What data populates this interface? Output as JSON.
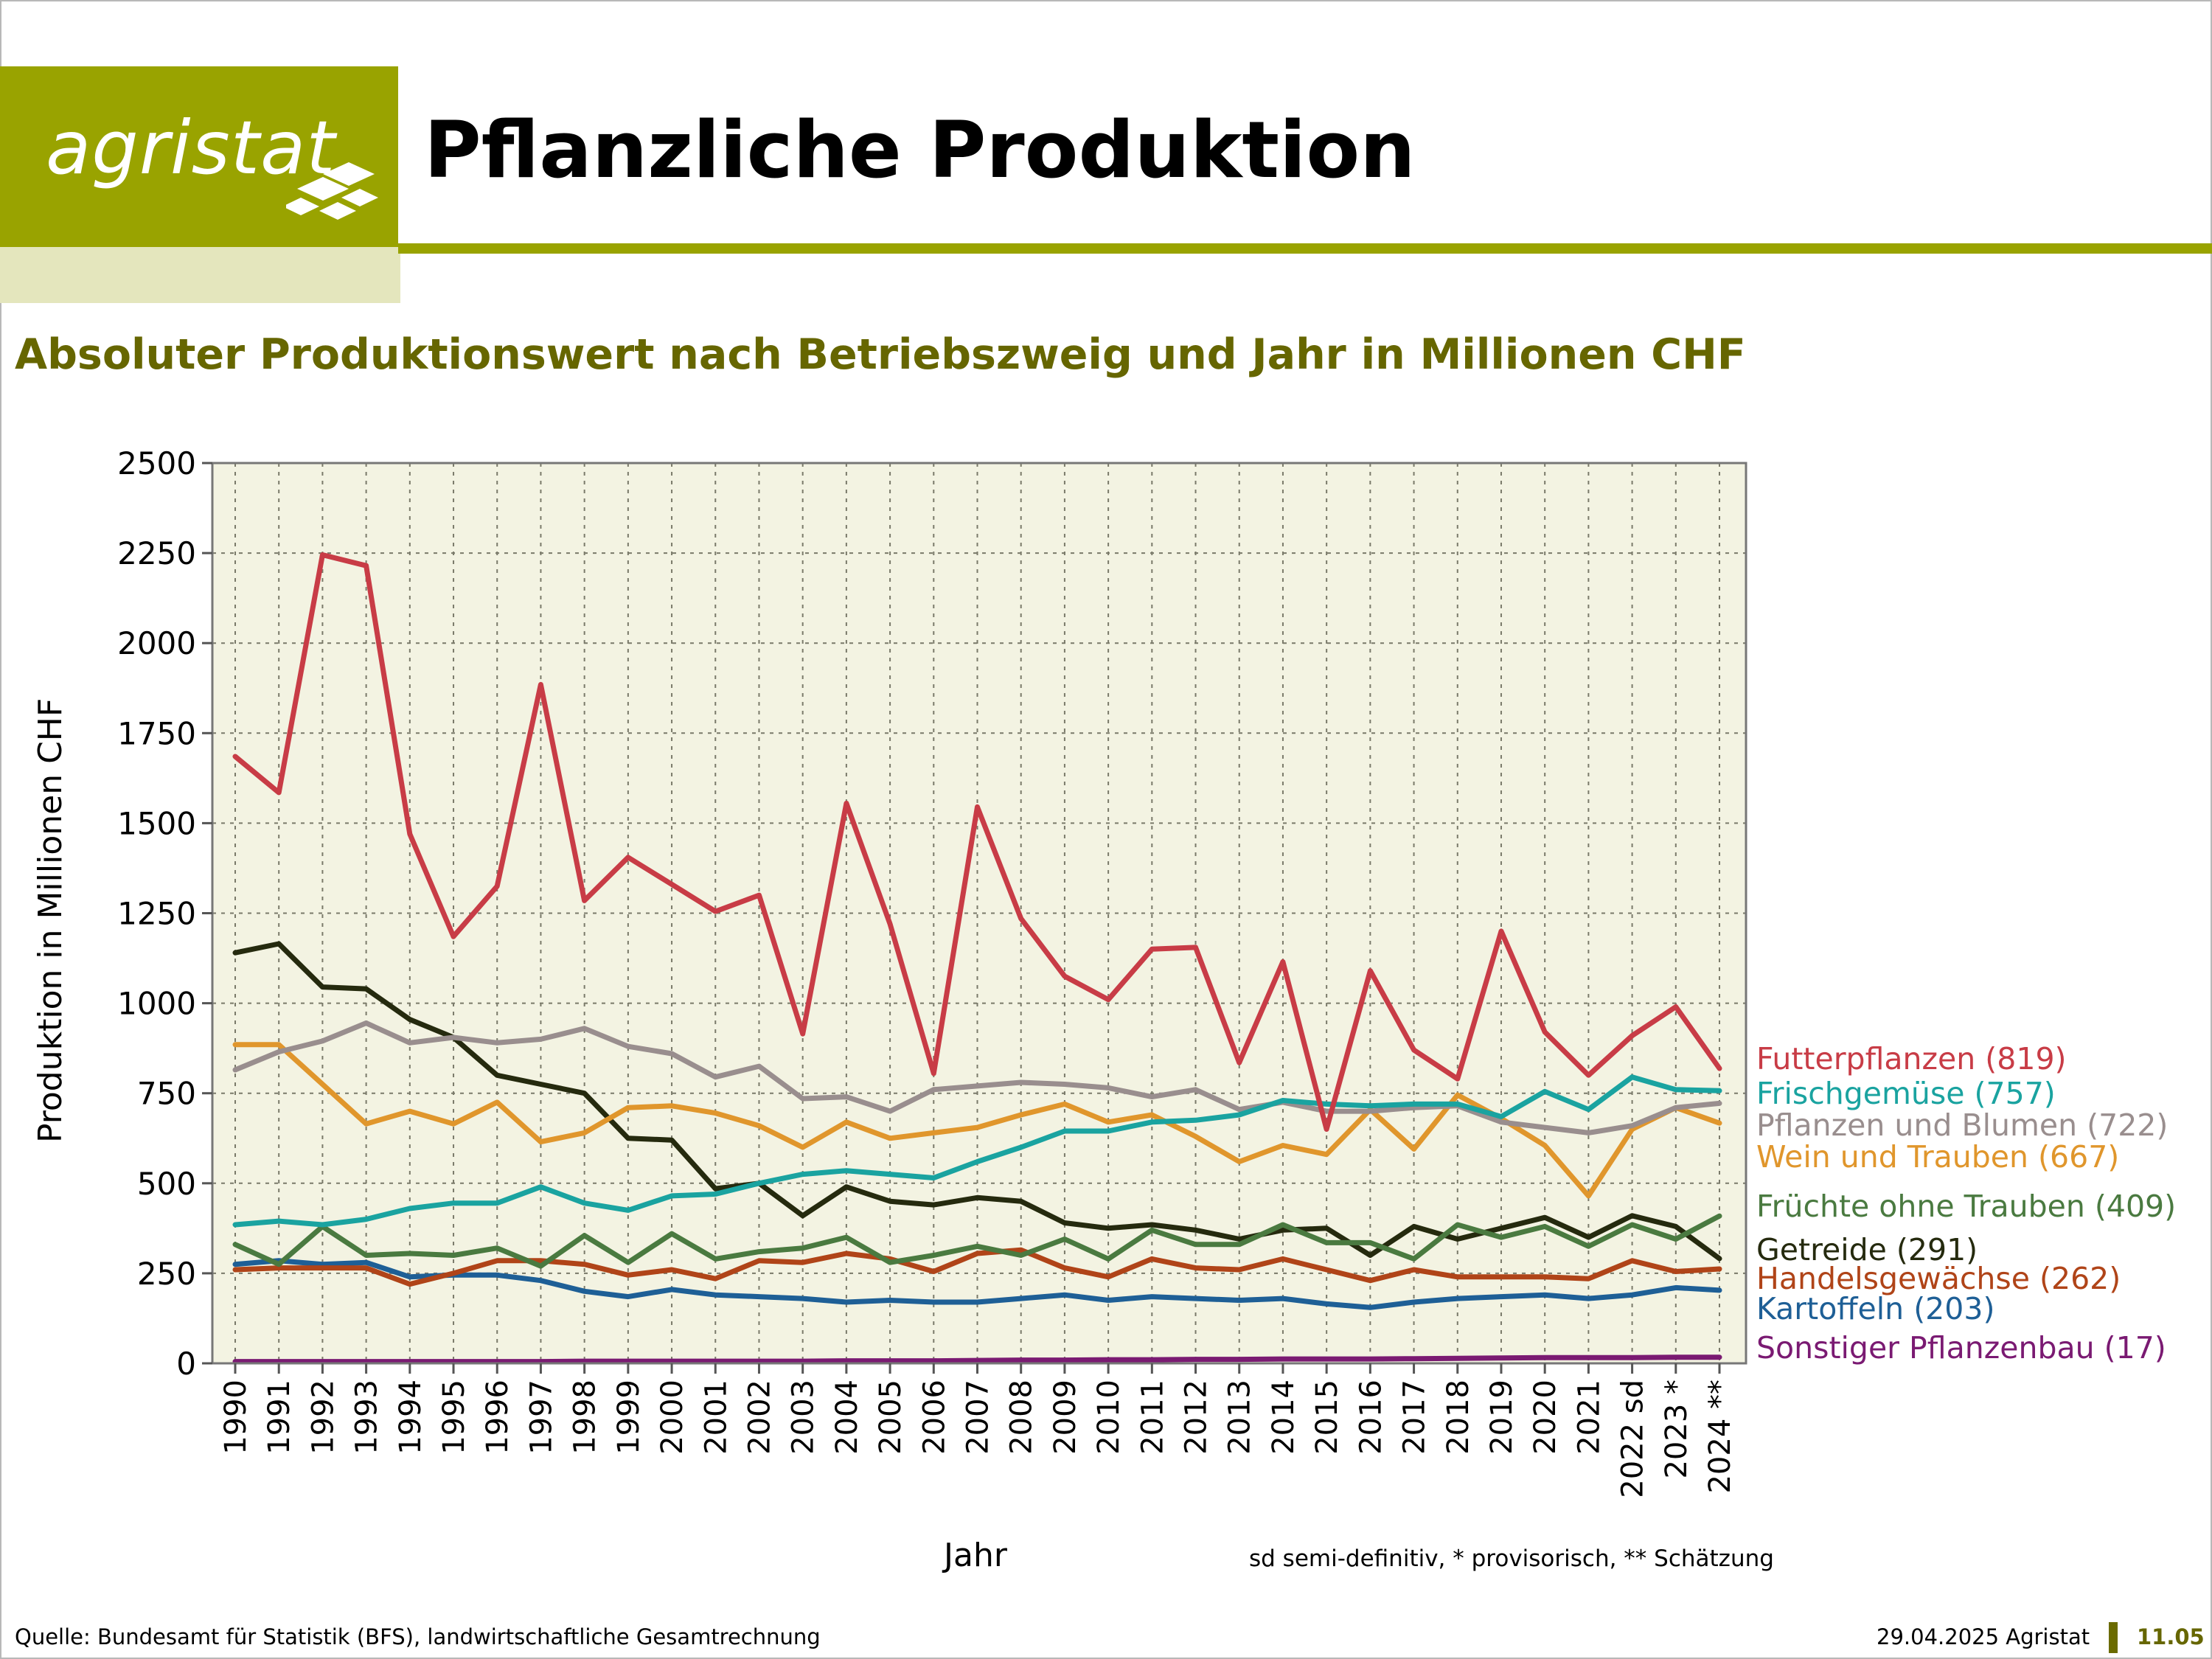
{
  "header": {
    "logo_text": "agristat",
    "title": "Pflanzliche Produktion",
    "subtitle": "Absoluter Produktionswert nach Betriebszweig und Jahr in Millionen CHF"
  },
  "footer": {
    "source": "Quelle: Bundesamt für Statistik (BFS), landwirtschaftliche Gesamtrechnung",
    "date": "29.04.2025 Agristat",
    "page": "11.05"
  },
  "colors": {
    "brand": "#99a300",
    "brand_light": "#e4e6bd",
    "subtitle": "#666600",
    "plot_bg": "#f3f3e2"
  },
  "chart_data": {
    "type": "line",
    "title": "Absoluter Produktionswert nach Betriebszweig und Jahr in Millionen CHF",
    "xlabel": "Jahr",
    "ylabel": "Produktion in Millionen CHF",
    "footnote": "sd semi-definitiv, * provisorisch, ** Schätzung",
    "ylim": [
      0,
      2500
    ],
    "yticks": [
      0,
      250,
      500,
      750,
      1000,
      1250,
      1500,
      1750,
      2000,
      2250,
      2500
    ],
    "grid": true,
    "legend": "right, labels at line ends",
    "categories": [
      "1990",
      "1991",
      "1992",
      "1993",
      "1994",
      "1995",
      "1996",
      "1997",
      "1998",
      "1999",
      "2000",
      "2001",
      "2002",
      "2003",
      "2004",
      "2005",
      "2006",
      "2007",
      "2008",
      "2009",
      "2010",
      "2011",
      "2012",
      "2013",
      "2014",
      "2015",
      "2016",
      "2017",
      "2018",
      "2019",
      "2020",
      "2021",
      "2022 sd",
      "2023 *",
      "2024 **"
    ],
    "series": [
      {
        "name": "Futterpflanzen (819)",
        "color": "#c83c46",
        "values": [
          1685,
          1585,
          2245,
          2215,
          1470,
          1185,
          1325,
          1885,
          1285,
          1405,
          1330,
          1255,
          1300,
          915,
          1555,
          1220,
          805,
          1545,
          1235,
          1075,
          1010,
          1150,
          1155,
          835,
          1115,
          650,
          1090,
          870,
          790,
          1200,
          920,
          800,
          910,
          990,
          819
        ]
      },
      {
        "name": "Frischgemüse (757)",
        "color": "#1aa3a0",
        "values": [
          385,
          395,
          385,
          400,
          430,
          445,
          445,
          490,
          445,
          425,
          465,
          470,
          500,
          525,
          535,
          525,
          515,
          560,
          600,
          645,
          645,
          670,
          675,
          690,
          730,
          720,
          715,
          720,
          720,
          685,
          755,
          705,
          795,
          760,
          757
        ]
      },
      {
        "name": "Pflanzen und Blumen (722)",
        "color": "#998e8e",
        "values": [
          815,
          865,
          895,
          945,
          890,
          905,
          890,
          900,
          930,
          880,
          860,
          795,
          825,
          735,
          740,
          700,
          760,
          770,
          780,
          775,
          765,
          740,
          760,
          705,
          725,
          700,
          700,
          710,
          715,
          670,
          655,
          640,
          660,
          710,
          722
        ]
      },
      {
        "name": "Wein und Trauben (667)",
        "color": "#e0962c",
        "values": [
          885,
          885,
          775,
          665,
          700,
          665,
          725,
          615,
          640,
          710,
          715,
          695,
          660,
          600,
          670,
          625,
          640,
          655,
          690,
          720,
          670,
          690,
          630,
          560,
          605,
          580,
          705,
          595,
          745,
          680,
          605,
          465,
          650,
          710,
          667
        ]
      },
      {
        "name": "Früchte ohne Trauben (409)",
        "color": "#4a7a40",
        "values": [
          330,
          275,
          380,
          300,
          305,
          300,
          320,
          270,
          355,
          280,
          360,
          290,
          310,
          320,
          350,
          280,
          300,
          325,
          300,
          345,
          290,
          370,
          330,
          330,
          385,
          335,
          335,
          290,
          385,
          350,
          380,
          325,
          385,
          345,
          409
        ]
      },
      {
        "name": "Getreide (291)",
        "color": "#252a0e",
        "values": [
          1140,
          1165,
          1045,
          1040,
          955,
          905,
          800,
          775,
          750,
          625,
          620,
          485,
          500,
          410,
          490,
          450,
          440,
          460,
          450,
          390,
          375,
          385,
          370,
          345,
          370,
          375,
          300,
          380,
          345,
          375,
          405,
          350,
          410,
          380,
          291
        ]
      },
      {
        "name": "Handelsgewächse (262)",
        "color": "#b04418",
        "values": [
          260,
          265,
          265,
          265,
          220,
          250,
          285,
          285,
          275,
          245,
          260,
          235,
          285,
          280,
          305,
          290,
          255,
          305,
          315,
          265,
          240,
          290,
          265,
          260,
          290,
          260,
          230,
          260,
          240,
          240,
          240,
          235,
          285,
          255,
          262
        ]
      },
      {
        "name": "Kartoffeln (203)",
        "color": "#1e5f96",
        "values": [
          275,
          285,
          275,
          280,
          240,
          245,
          245,
          230,
          200,
          185,
          205,
          190,
          185,
          180,
          170,
          175,
          170,
          170,
          180,
          190,
          175,
          185,
          180,
          175,
          180,
          165,
          155,
          170,
          180,
          185,
          190,
          180,
          190,
          210,
          203
        ]
      },
      {
        "name": "Sonstiger Pflanzenbau (17)",
        "color": "#7a1a72",
        "values": [
          5,
          5,
          5,
          5,
          5,
          5,
          5,
          5,
          6,
          6,
          6,
          6,
          6,
          6,
          7,
          7,
          7,
          8,
          9,
          9,
          10,
          10,
          11,
          11,
          12,
          12,
          12,
          13,
          14,
          15,
          16,
          16,
          16,
          17,
          17
        ]
      }
    ]
  }
}
